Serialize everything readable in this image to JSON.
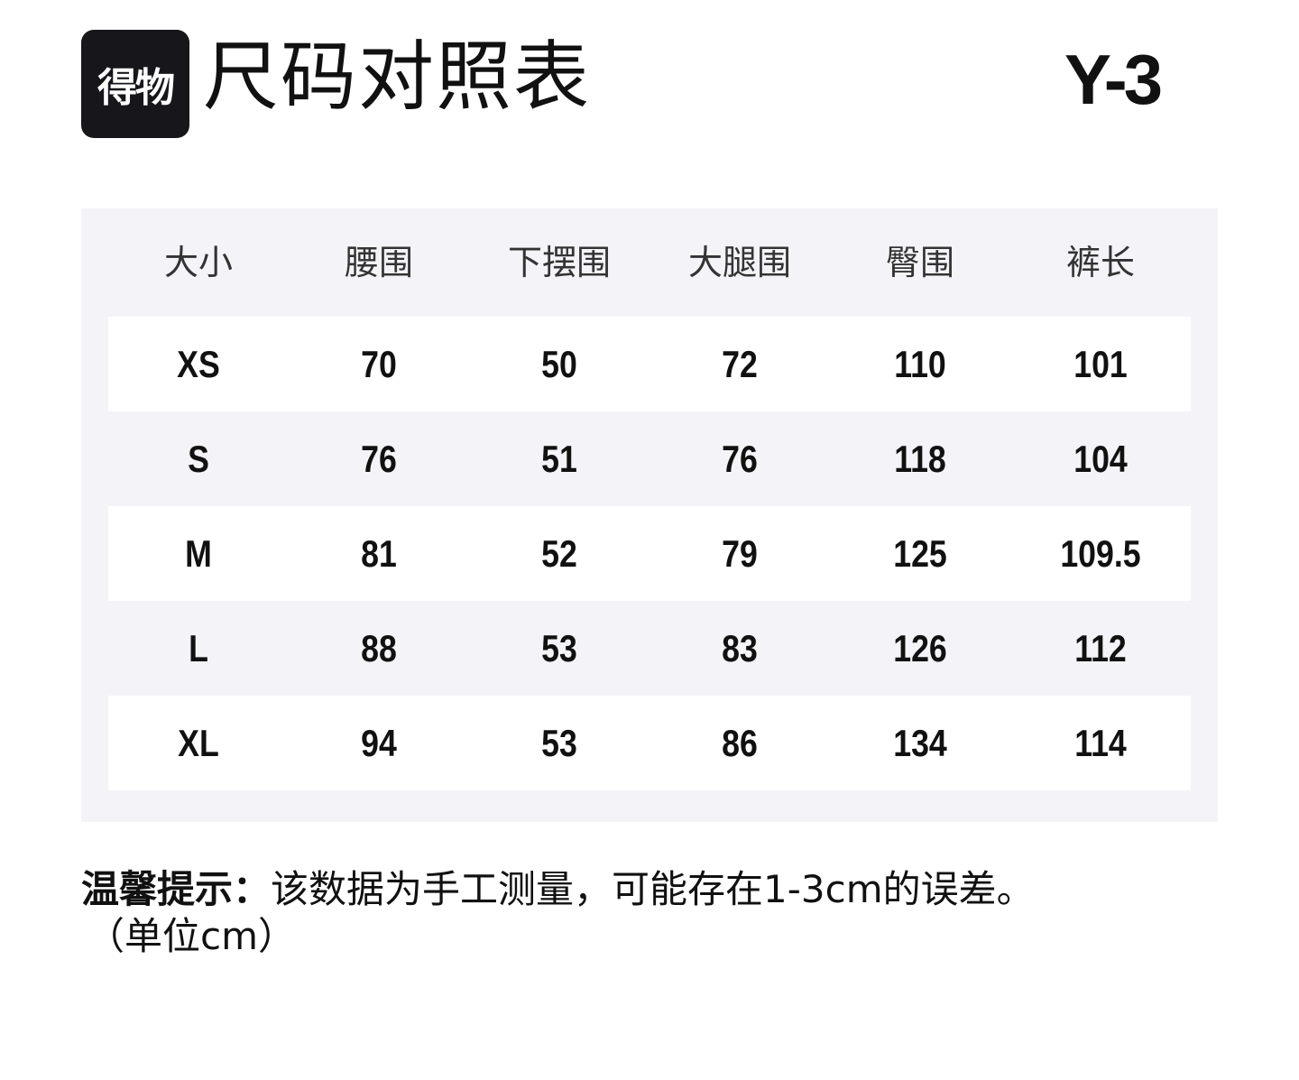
{
  "header": {
    "logo_text": "得物",
    "title": "尺码对照表",
    "brand": "Y-3"
  },
  "table": {
    "columns": [
      "大小",
      "腰围",
      "下摆围",
      "大腿围",
      "臀围",
      "裤长"
    ],
    "rows": [
      [
        "XS",
        "70",
        "50",
        "72",
        "110",
        "101"
      ],
      [
        "S",
        "76",
        "51",
        "76",
        "118",
        "104"
      ],
      [
        "M",
        "81",
        "52",
        "79",
        "125",
        "109.5"
      ],
      [
        "L",
        "88",
        "53",
        "83",
        "126",
        "112"
      ],
      [
        "XL",
        "94",
        "53",
        "86",
        "134",
        "114"
      ]
    ]
  },
  "footer": {
    "note_label": "温馨提示：",
    "note_text": "该数据为手工测量，可能存在1-3cm的误差。",
    "unit": "（单位cm）"
  },
  "colors": {
    "panel": "#f4f4f8",
    "logo_bg": "#16161b"
  }
}
